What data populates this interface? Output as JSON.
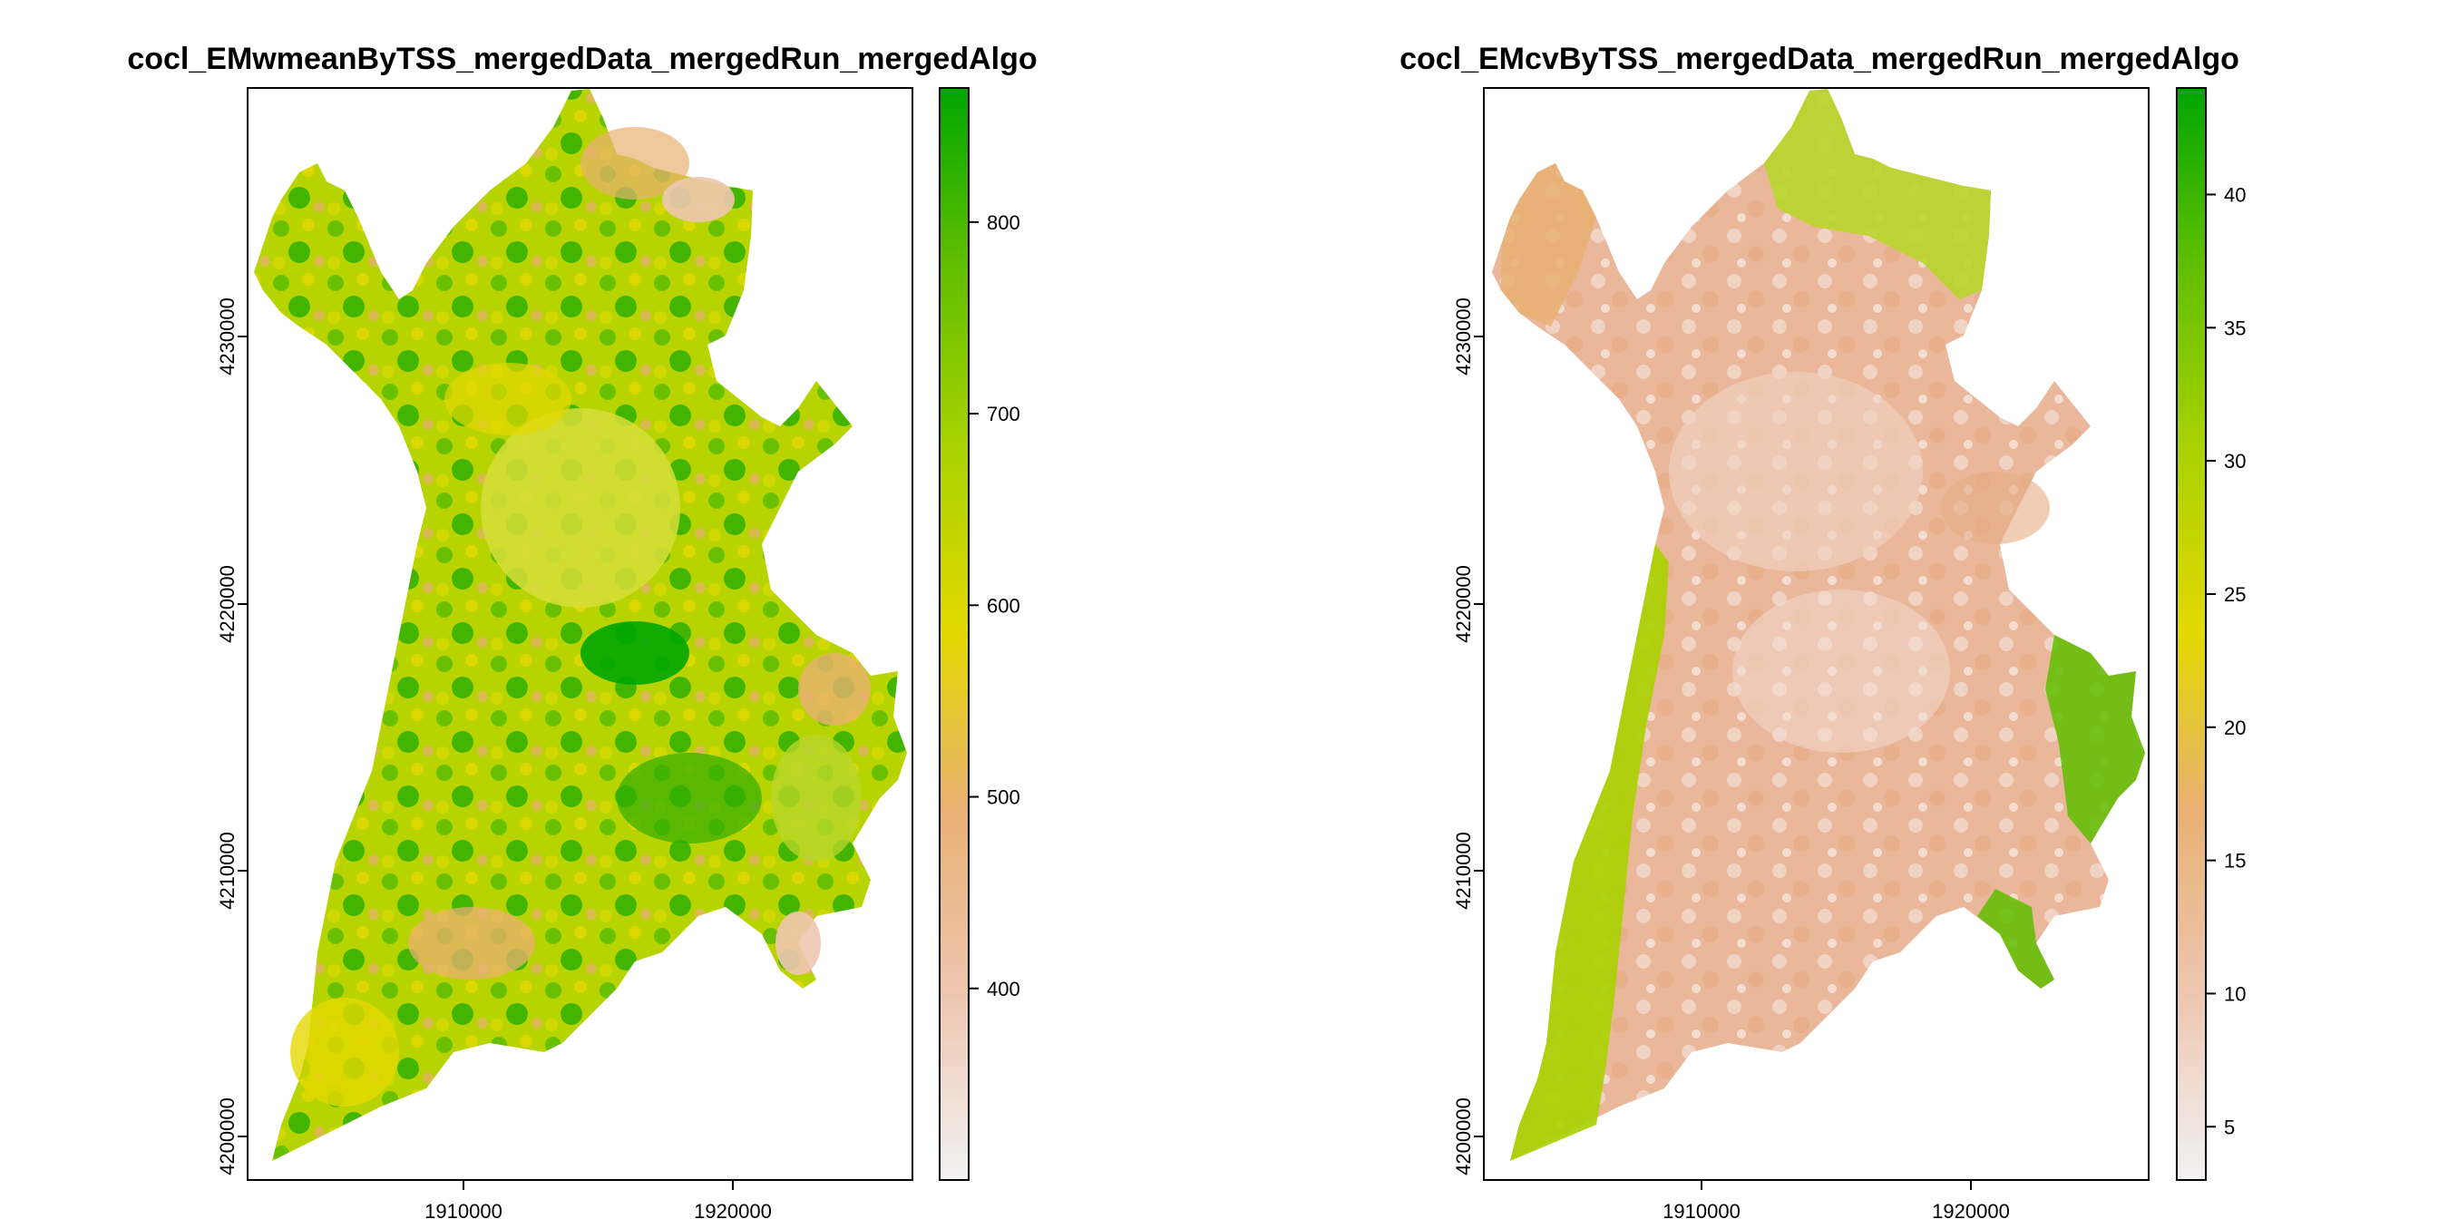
{
  "colors": {
    "ramp": [
      "#f2f2f2",
      "#eec6b0",
      "#e8b072",
      "#e3d800",
      "#a9d200",
      "#5fbe00",
      "#00a600"
    ]
  },
  "panels": [
    {
      "id": "left",
      "title": "cocl_EMwmeanByTSS_mergedData_mergedRun_mergedAlgo",
      "x_ticks": [
        "1910000",
        "1920000"
      ],
      "y_ticks": [
        "4230000",
        "4220000",
        "4210000",
        "4200000"
      ],
      "legend": {
        "range": [
          300,
          870
        ],
        "ticks": [
          "800",
          "700",
          "600",
          "500",
          "400"
        ],
        "tick_values": [
          800,
          700,
          600,
          500,
          400
        ]
      }
    },
    {
      "id": "right",
      "title": "cocl_EMcvByTSS_mergedData_mergedRun_mergedAlgo",
      "x_ticks": [
        "1910000",
        "1920000"
      ],
      "y_ticks": [
        "4230000",
        "4220000",
        "4210000",
        "4200000"
      ],
      "legend": {
        "range": [
          3,
          44
        ],
        "ticks": [
          "40",
          "35",
          "30",
          "25",
          "20",
          "15",
          "10",
          "5"
        ],
        "tick_values": [
          40,
          35,
          30,
          25,
          20,
          15,
          10,
          5
        ]
      }
    }
  ]
}
